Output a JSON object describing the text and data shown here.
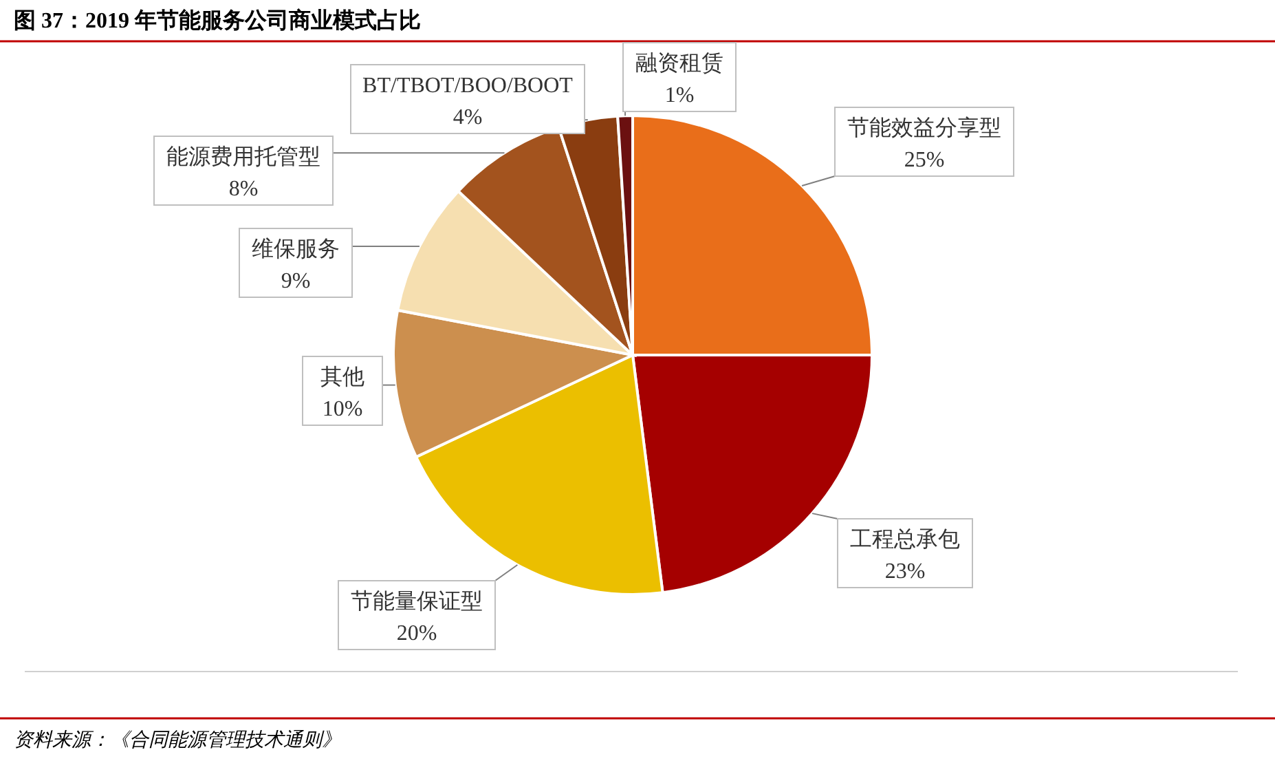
{
  "chart_data": {
    "type": "pie",
    "title": "图 37：2019 年节能服务公司商业模式占比",
    "categories": [
      "节能效益分享型",
      "工程总承包",
      "节能量保证型",
      "其他",
      "维保服务",
      "能源费用托管型",
      "BT/TBOT/BOO/BOOT",
      "融资租赁"
    ],
    "values": [
      25,
      23,
      20,
      10,
      9,
      8,
      4,
      1
    ],
    "value_labels": [
      "25%",
      "23%",
      "20%",
      "10%",
      "9%",
      "8%",
      "4%",
      "1%"
    ],
    "colors": [
      "#e96e1a",
      "#a50000",
      "#ebbf00",
      "#cc8f4e",
      "#f6dfb0",
      "#a3531e",
      "#8a3d10",
      "#6b1010"
    ],
    "annotations": [
      "资料来源：《合同能源管理技术通则》"
    ]
  }
}
